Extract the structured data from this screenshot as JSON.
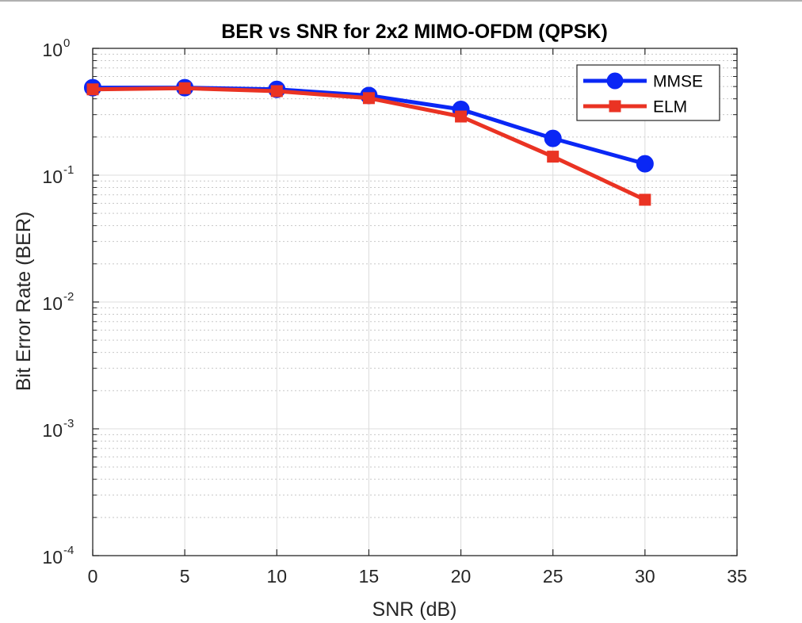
{
  "chart_data": {
    "type": "line",
    "title": "BER vs SNR for 2x2 MIMO-OFDM (QPSK)",
    "xlabel": "SNR (dB)",
    "ylabel": "Bit Error Rate (BER)",
    "xlim": [
      0,
      35
    ],
    "ylim": [
      0.0001,
      1
    ],
    "yscale": "log",
    "grid": true,
    "minor_grid": true,
    "legend_position": "top-right",
    "x_ticks": [
      0,
      5,
      10,
      15,
      20,
      25,
      30,
      35
    ],
    "x_tick_labels": [
      "0",
      "5",
      "10",
      "15",
      "20",
      "25",
      "30",
      "35"
    ],
    "y_ticks": [
      0.0001,
      0.001,
      0.01,
      0.1,
      1
    ],
    "y_tick_labels": [
      {
        "base": "10",
        "exp": "-4"
      },
      {
        "base": "10",
        "exp": "-3"
      },
      {
        "base": "10",
        "exp": "-2"
      },
      {
        "base": "10",
        "exp": "-1"
      },
      {
        "base": "10",
        "exp": "0"
      }
    ],
    "series": [
      {
        "name": "MMSE",
        "color": "#0a27f5",
        "marker": "circle",
        "x": [
          0,
          5,
          10,
          15,
          20,
          25,
          30
        ],
        "y": [
          0.49,
          0.49,
          0.475,
          0.425,
          0.33,
          0.195,
          0.123
        ]
      },
      {
        "name": "ELM",
        "color": "#ea3323",
        "marker": "square",
        "x": [
          0,
          5,
          10,
          15,
          20,
          25,
          30
        ],
        "y": [
          0.475,
          0.485,
          0.46,
          0.405,
          0.29,
          0.14,
          0.064
        ]
      }
    ]
  }
}
